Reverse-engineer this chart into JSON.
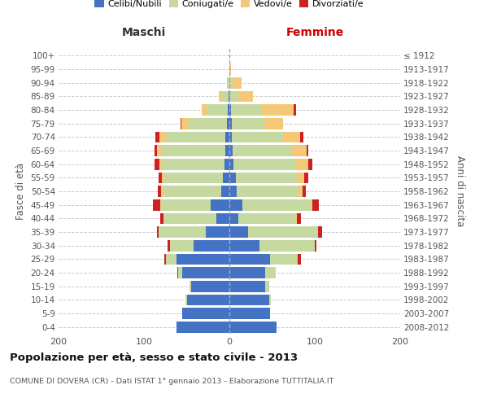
{
  "age_groups": [
    "0-4",
    "5-9",
    "10-14",
    "15-19",
    "20-24",
    "25-29",
    "30-34",
    "35-39",
    "40-44",
    "45-49",
    "50-54",
    "55-59",
    "60-64",
    "65-69",
    "70-74",
    "75-79",
    "80-84",
    "85-89",
    "90-94",
    "95-99",
    "100+"
  ],
  "birth_years": [
    "2008-2012",
    "2003-2007",
    "1998-2002",
    "1993-1997",
    "1988-1992",
    "1983-1987",
    "1978-1982",
    "1973-1977",
    "1968-1972",
    "1963-1967",
    "1958-1962",
    "1953-1957",
    "1948-1952",
    "1943-1947",
    "1938-1942",
    "1933-1937",
    "1928-1932",
    "1923-1927",
    "1918-1922",
    "1913-1917",
    "≤ 1912"
  ],
  "maschi_celibe": [
    62,
    55,
    50,
    45,
    55,
    62,
    42,
    28,
    15,
    22,
    10,
    8,
    6,
    5,
    5,
    3,
    2,
    1,
    0,
    0,
    0
  ],
  "maschi_coniugato": [
    0,
    0,
    1,
    2,
    5,
    12,
    28,
    55,
    62,
    58,
    68,
    68,
    73,
    75,
    70,
    45,
    25,
    8,
    2,
    0,
    0
  ],
  "maschi_vedovo": [
    0,
    0,
    0,
    0,
    0,
    0,
    0,
    0,
    0,
    1,
    2,
    3,
    3,
    5,
    7,
    8,
    5,
    3,
    1,
    0,
    0
  ],
  "maschi_divorziato": [
    0,
    0,
    0,
    0,
    1,
    2,
    2,
    2,
    4,
    9,
    4,
    4,
    6,
    3,
    5,
    1,
    0,
    0,
    0,
    0,
    0
  ],
  "femmine_nubile": [
    55,
    48,
    47,
    42,
    42,
    48,
    35,
    22,
    10,
    15,
    9,
    8,
    5,
    4,
    3,
    3,
    2,
    0,
    0,
    0,
    0
  ],
  "femmine_coniugata": [
    0,
    0,
    2,
    5,
    12,
    32,
    65,
    82,
    68,
    80,
    72,
    72,
    73,
    68,
    60,
    38,
    35,
    10,
    4,
    1,
    0
  ],
  "femmine_vedova": [
    0,
    0,
    0,
    0,
    0,
    0,
    0,
    0,
    1,
    2,
    5,
    8,
    14,
    18,
    20,
    22,
    38,
    18,
    10,
    1,
    0
  ],
  "femmine_divorziata": [
    0,
    0,
    0,
    0,
    0,
    4,
    2,
    5,
    5,
    8,
    4,
    4,
    5,
    2,
    4,
    0,
    3,
    0,
    0,
    0,
    0
  ],
  "colors": {
    "celibe": "#4472c4",
    "coniugato": "#c5d9a0",
    "vedovo": "#f5c878",
    "divorziato": "#cc2222"
  },
  "title": "Popolazione per età, sesso e stato civile - 2013",
  "subtitle": "COMUNE DI DOVERA (CR) - Dati ISTAT 1° gennaio 2013 - Elaborazione TUTTITALIA.IT",
  "xlabel_left": "Maschi",
  "xlabel_right": "Femmine",
  "ylabel_left": "Fasce di età",
  "ylabel_right": "Anni di nascita",
  "xlim": 200,
  "bg_color": "#ffffff",
  "grid_color": "#cccccc",
  "legend_labels": [
    "Celibi/Nubili",
    "Coniugati/e",
    "Vedovi/e",
    "Divorziati/e"
  ]
}
